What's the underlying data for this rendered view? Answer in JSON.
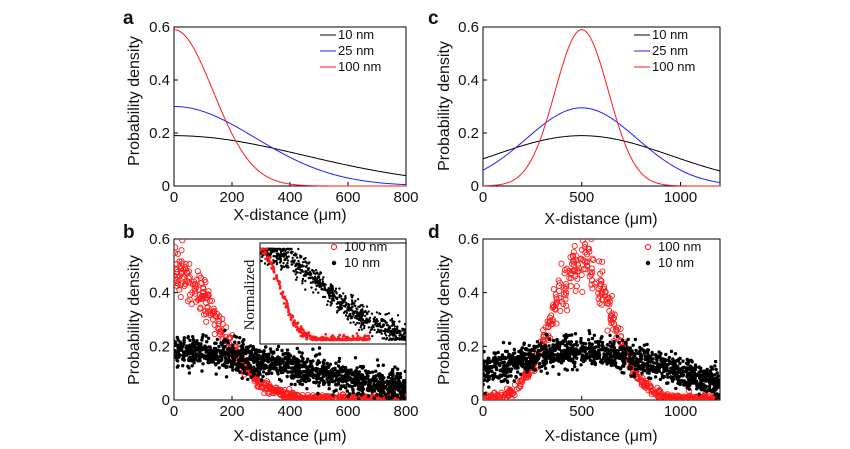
{
  "chart_data": [
    {
      "panel": "a",
      "type": "line",
      "xlabel": "X-distance (μm)",
      "ylabel": "Probability density",
      "xlim": [
        0,
        800
      ],
      "ylim": [
        0,
        0.6
      ],
      "xticks": [
        "0",
        "200",
        "400",
        "600",
        "800"
      ],
      "yticks": [
        "0",
        "0.2",
        "0.4",
        "0.6"
      ],
      "legend_position": "top-right",
      "series": [
        {
          "name": "10 nm",
          "color": "#000000",
          "peak": 0.19,
          "center": 0,
          "sigma": 450
        },
        {
          "name": "25 nm",
          "color": "#1f1fff",
          "peak": 0.3,
          "center": 0,
          "sigma": 280
        },
        {
          "name": "100 nm",
          "color": "#ff1a1a",
          "peak": 0.59,
          "center": 0,
          "sigma": 135
        }
      ]
    },
    {
      "panel": "b",
      "type": "scatter",
      "xlabel": "X-distance (μm)",
      "ylabel": "Probability density",
      "xlim": [
        0,
        800
      ],
      "ylim": [
        0,
        0.6
      ],
      "xticks": [
        "0",
        "200",
        "400",
        "600",
        "800"
      ],
      "yticks": [
        "0",
        "0.2",
        "0.4",
        "0.6"
      ],
      "legend_position": "top-right",
      "series": [
        {
          "name": "100 nm",
          "marker": "open-circle",
          "color": "#ff1a1a",
          "peak": 0.48,
          "center": 0,
          "sigma": 150
        },
        {
          "name": "10 nm",
          "marker": "filled-dot",
          "color": "#000000",
          "peak": 0.18,
          "center": 0,
          "sigma": 480
        }
      ],
      "inset": {
        "ylabel": "Normalized"
      }
    },
    {
      "panel": "c",
      "type": "line",
      "xlabel": "X-distance (μm)",
      "ylabel": "Probability density",
      "xlim": [
        0,
        1200
      ],
      "ylim": [
        0,
        0.6
      ],
      "xticks": [
        "0",
        "500",
        "1000"
      ],
      "yticks": [
        "0",
        "0.2",
        "0.4",
        "0.6"
      ],
      "legend_position": "top-right",
      "series": [
        {
          "name": "10 nm",
          "color": "#000000",
          "peak": 0.19,
          "center": 500,
          "sigma": 450
        },
        {
          "name": "25 nm",
          "color": "#1f1fff",
          "peak": 0.295,
          "center": 500,
          "sigma": 280
        },
        {
          "name": "100 nm",
          "color": "#ff1a1a",
          "peak": 0.59,
          "center": 500,
          "sigma": 135
        }
      ]
    },
    {
      "panel": "d",
      "type": "scatter",
      "xlabel": "X-distance (μm)",
      "ylabel": "Probability density",
      "xlim": [
        0,
        1200
      ],
      "ylim": [
        0,
        0.6
      ],
      "xticks": [
        "0",
        "500",
        "1000"
      ],
      "yticks": [
        "0",
        "0.2",
        "0.4",
        "0.6"
      ],
      "legend_position": "top-right",
      "series": [
        {
          "name": "100 nm",
          "marker": "open-circle",
          "color": "#ff1a1a",
          "peak": 0.52,
          "center": 500,
          "sigma": 150
        },
        {
          "name": "10 nm",
          "marker": "filled-dot",
          "color": "#000000",
          "peak": 0.18,
          "center": 500,
          "sigma": 480
        }
      ]
    }
  ]
}
